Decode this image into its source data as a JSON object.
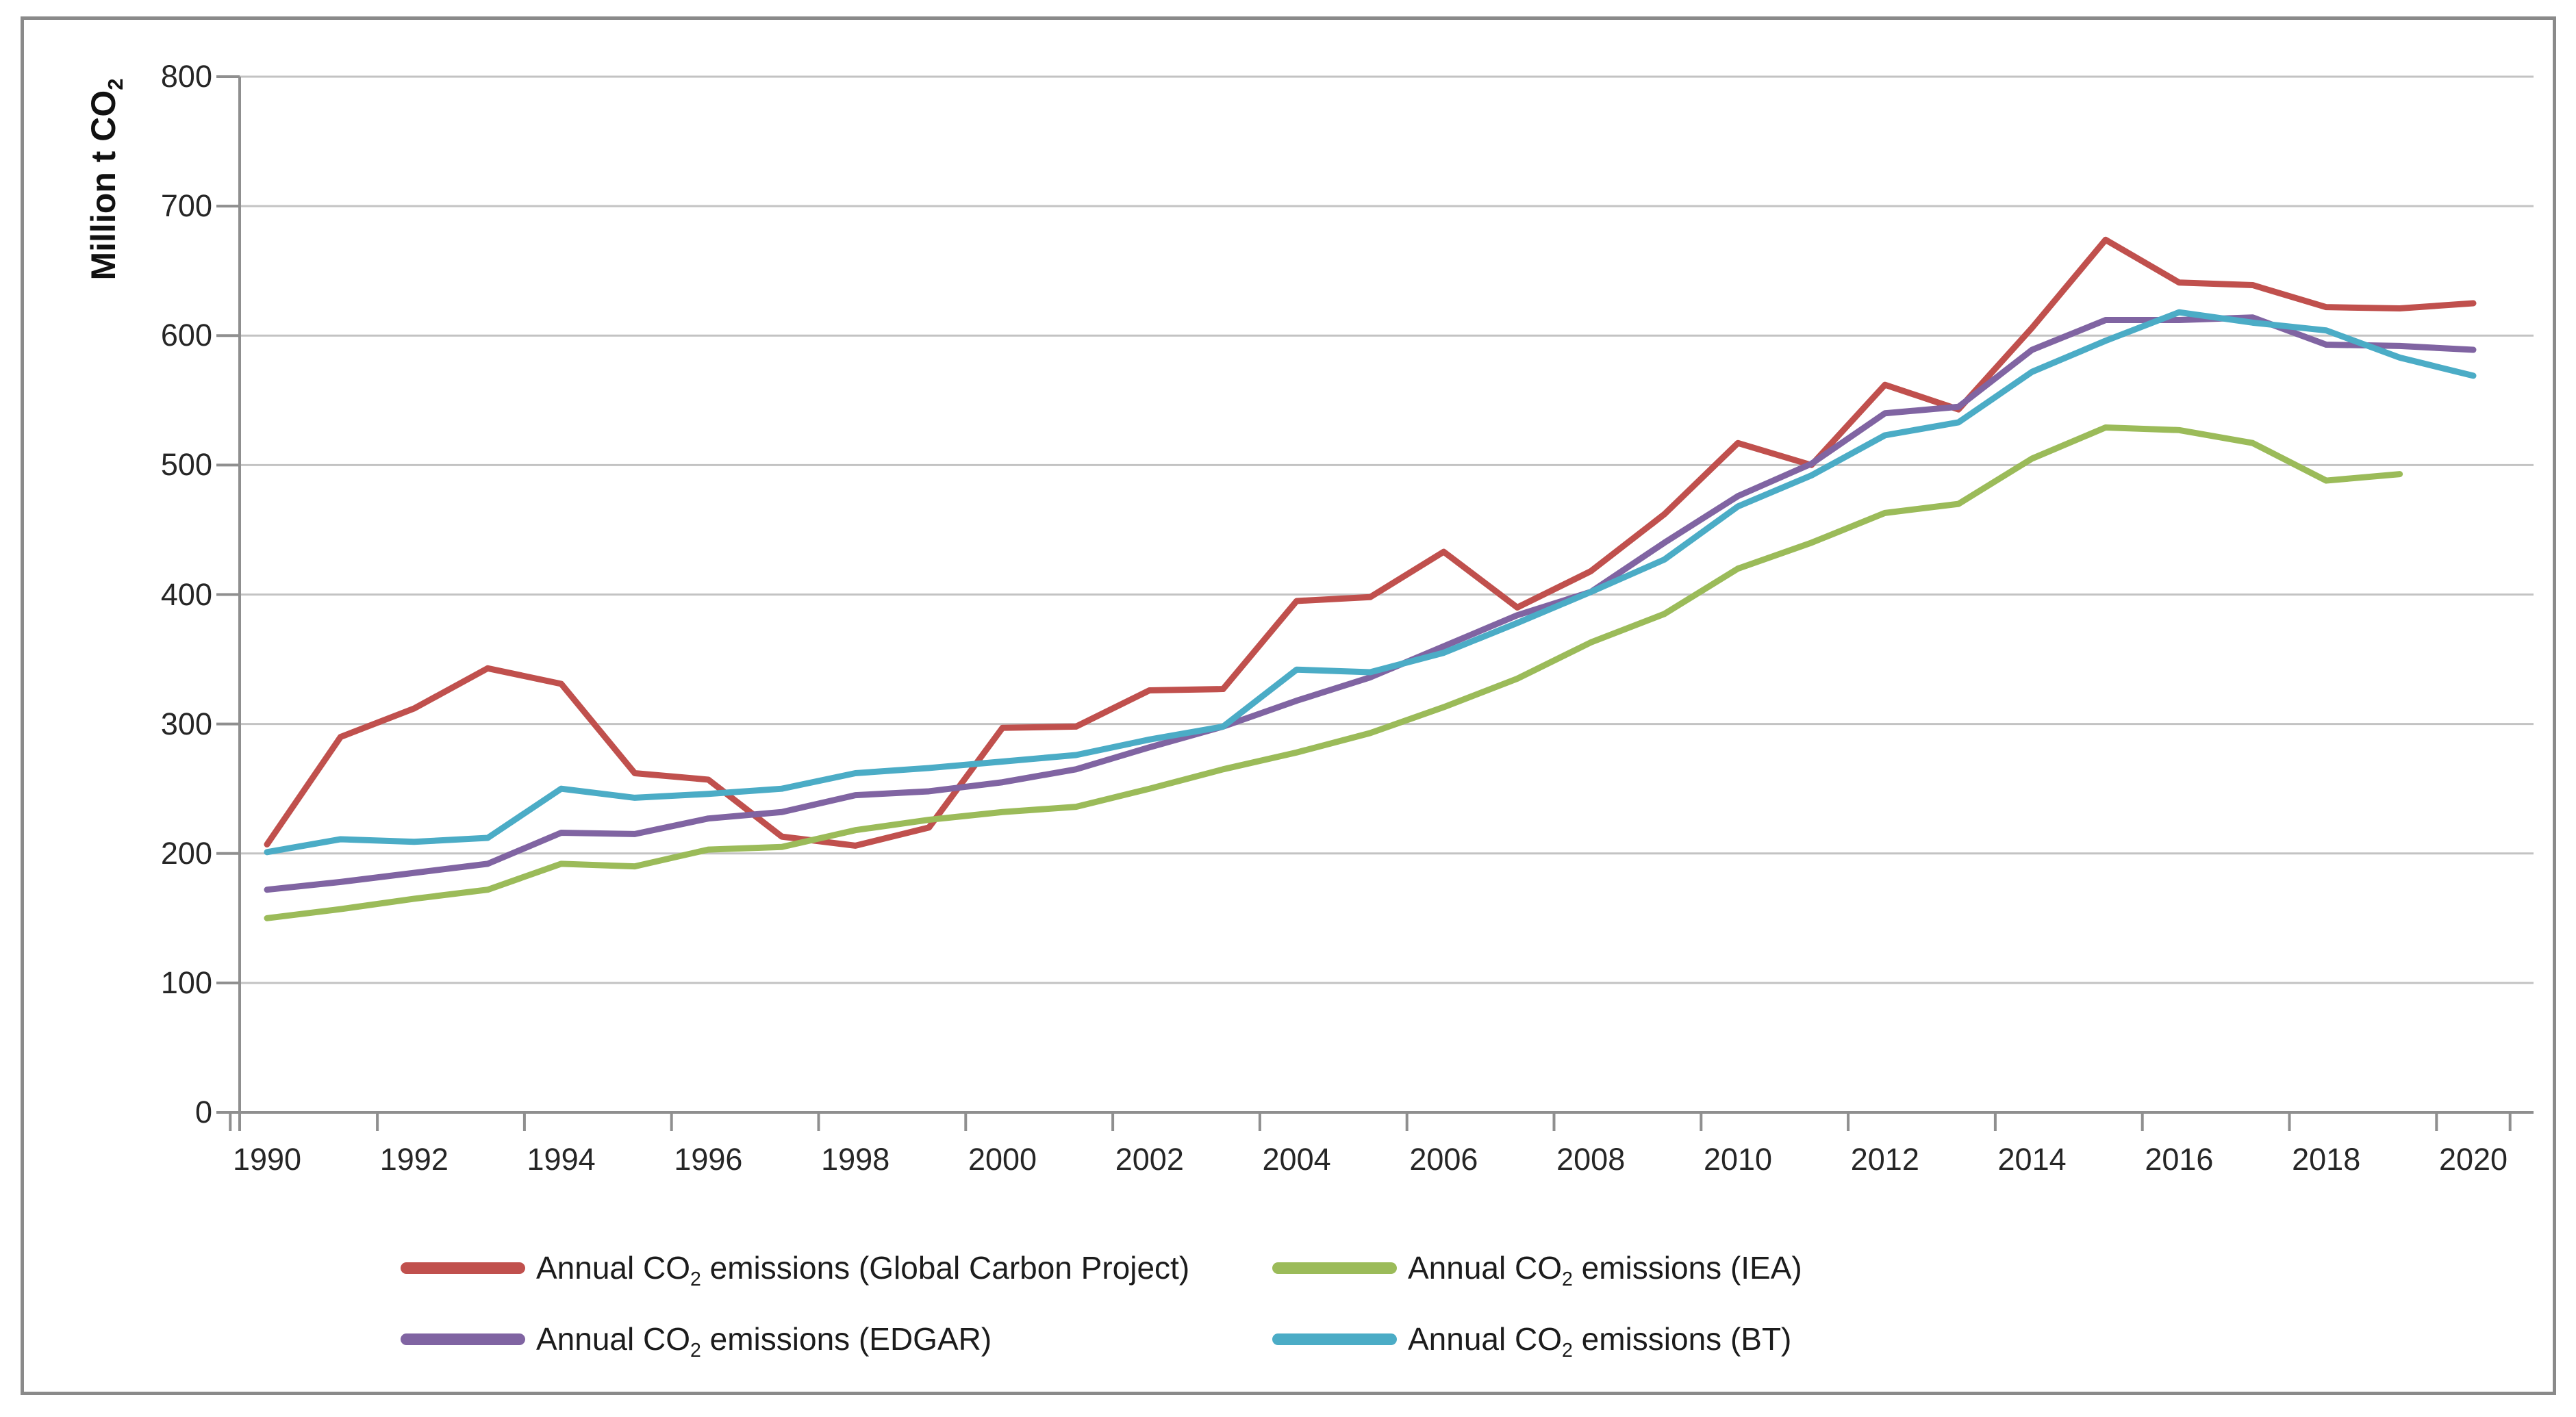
{
  "page": {
    "background": "#ffffff",
    "frame_color": "#8a8a8a",
    "grid_color": "#c3c3c3",
    "axis_color": "#8f8f8f",
    "text_color": "#262626"
  },
  "chart_data": {
    "type": "line",
    "title": "",
    "ylabel": "Million t CO2",
    "xlabel": "",
    "grid": true,
    "legend_position": "bottom",
    "ylim": [
      0,
      800
    ],
    "y_tick_step": 100,
    "y_tick_labels": [
      0,
      100,
      200,
      300,
      400,
      500,
      600,
      700,
      800
    ],
    "x_tick_labels": [
      1990,
      1992,
      1994,
      1996,
      1998,
      2000,
      2002,
      2004,
      2006,
      2008,
      2010,
      2012,
      2014,
      2016,
      2018,
      2020
    ],
    "x": [
      1990,
      1991,
      1992,
      1993,
      1994,
      1995,
      1996,
      1997,
      1998,
      1999,
      2000,
      2001,
      2002,
      2003,
      2004,
      2005,
      2006,
      2007,
      2008,
      2009,
      2010,
      2011,
      2012,
      2013,
      2014,
      2015,
      2016,
      2017,
      2018,
      2019,
      2020
    ],
    "series": [
      {
        "name": "Annual CO2 emissions (Global Carbon Project)",
        "color": "#C0504D",
        "values": [
          207,
          290,
          312,
          343,
          331,
          262,
          257,
          213,
          206,
          220,
          297,
          298,
          326,
          327,
          395,
          398,
          433,
          390,
          418,
          462,
          517,
          500,
          562,
          543,
          606,
          674,
          641,
          639,
          622,
          621,
          625
        ]
      },
      {
        "name": "Annual CO2 emissions (IEA)",
        "color": "#9BBB59",
        "values": [
          150,
          157,
          165,
          172,
          192,
          190,
          203,
          205,
          218,
          226,
          232,
          236,
          250,
          265,
          278,
          293,
          313,
          335,
          363,
          385,
          420,
          440,
          463,
          470,
          505,
          529,
          527,
          517,
          488,
          493,
          null
        ]
      },
      {
        "name": "Annual CO2 emissions (EDGAR)",
        "color": "#8064A2",
        "values": [
          172,
          178,
          185,
          192,
          216,
          215,
          227,
          232,
          245,
          248,
          255,
          265,
          282,
          298,
          318,
          336,
          360,
          384,
          402,
          440,
          476,
          501,
          540,
          545,
          589,
          612,
          612,
          614,
          593,
          592,
          589
        ]
      },
      {
        "name": "Annual CO2 emissions (BT)",
        "color": "#4BACC6",
        "values": [
          201,
          211,
          209,
          212,
          250,
          243,
          246,
          250,
          262,
          266,
          271,
          276,
          288,
          298,
          342,
          340,
          355,
          378,
          402,
          427,
          468,
          492,
          523,
          533,
          572,
          596,
          618,
          610,
          604,
          583,
          569
        ]
      }
    ]
  }
}
